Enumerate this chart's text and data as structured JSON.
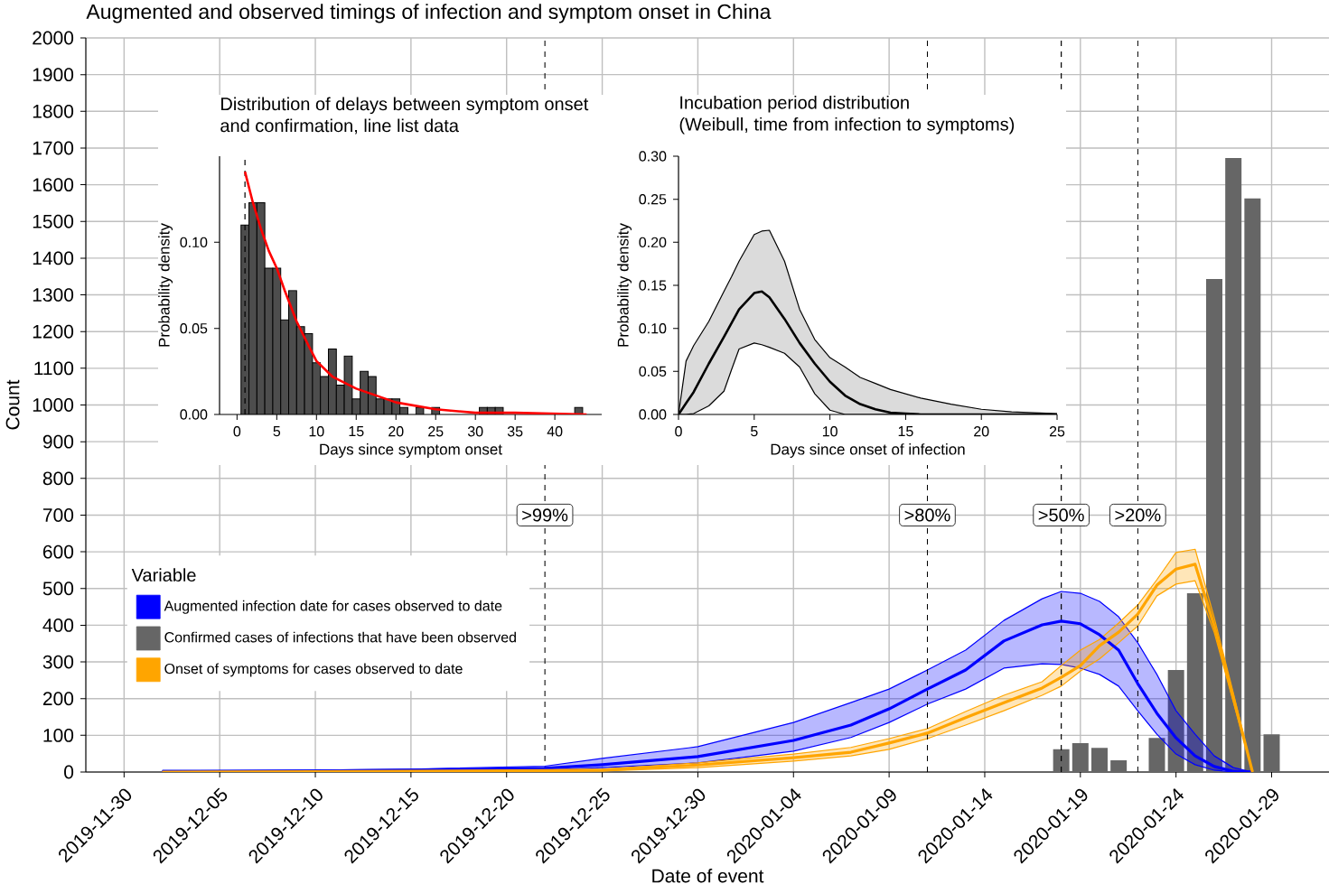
{
  "chart_data": [
    {
      "type": "bar",
      "title": "Augmented and observed timings of infection and symptom onset in China",
      "xlabel": "Date of event",
      "ylabel": "Count",
      "legend_title": "Variable",
      "legend": "bottom left",
      "grid": true,
      "xlim": [
        "2019-11-28",
        "2020-02-01"
      ],
      "ylim": [
        0,
        2000
      ],
      "xticks": [
        "2019-11-30",
        "2019-12-05",
        "2019-12-10",
        "2019-12-15",
        "2019-12-20",
        "2019-12-25",
        "2019-12-30",
        "2020-01-04",
        "2020-01-09",
        "2020-01-14",
        "2020-01-19",
        "2020-01-24",
        "2020-01-29"
      ],
      "yticks": [
        0,
        100,
        200,
        300,
        400,
        500,
        600,
        700,
        800,
        900,
        1000,
        1100,
        1200,
        1300,
        1400,
        1500,
        1600,
        1700,
        1800,
        1900,
        2000
      ],
      "ref_lines": [
        {
          "axis": "x",
          "value": "2019-12-22",
          "label": ">99%",
          "line_style": "dashed"
        },
        {
          "axis": "x",
          "value": "2020-01-11",
          "label": ">80%",
          "line_style": "dashed"
        },
        {
          "axis": "x",
          "value": "2020-01-18",
          "label": ">50%",
          "line_style": "dashed"
        },
        {
          "axis": "x",
          "value": "2020-01-22",
          "label": ">20%",
          "line_style": "dashed"
        }
      ],
      "series": [
        {
          "name": "Augmented infection date for cases observed to date",
          "type": "line",
          "color": "#0000ff",
          "x": [
            "2019-12-02",
            "2019-12-10",
            "2019-12-15",
            "2019-12-22",
            "2019-12-25",
            "2019-12-30",
            "2020-01-04",
            "2020-01-07",
            "2020-01-09",
            "2020-01-11",
            "2020-01-13",
            "2020-01-15",
            "2020-01-17",
            "2020-01-18",
            "2020-01-19",
            "2020-01-20",
            "2020-01-21",
            "2020-01-22",
            "2020-01-23",
            "2020-01-24",
            "2020-01-25",
            "2020-01-26",
            "2020-01-27",
            "2020-01-28"
          ],
          "values": [
            2,
            3,
            5,
            10,
            20,
            42,
            86,
            128,
            172,
            226,
            278,
            357,
            401,
            411,
            404,
            374,
            332,
            241,
            160,
            93,
            44,
            15,
            2,
            0
          ],
          "lower": [
            1,
            2,
            3,
            5,
            12,
            25,
            57,
            94,
            135,
            185,
            226,
            283,
            295,
            293,
            283,
            266,
            234,
            167,
            103,
            49,
            20,
            5,
            0,
            0
          ],
          "upper": [
            3,
            5,
            8,
            16,
            37,
            69,
            135,
            189,
            226,
            278,
            332,
            413,
            472,
            492,
            487,
            465,
            423,
            352,
            266,
            167,
            103,
            44,
            12,
            0
          ]
        },
        {
          "name": "Confirmed cases of infections that have been observed",
          "type": "bar",
          "color": "#666666",
          "x": [
            "2020-01-18",
            "2020-01-19",
            "2020-01-20",
            "2020-01-21",
            "2020-01-23",
            "2020-01-24",
            "2020-01-25",
            "2020-01-26",
            "2020-01-27",
            "2020-01-28",
            "2020-01-29"
          ],
          "values": [
            62,
            79,
            66,
            32,
            93,
            278,
            487,
            1343,
            1673,
            1563,
            103
          ]
        },
        {
          "name": "Onset of symptoms for cases observed to date",
          "type": "line",
          "color": "#ffa500",
          "x": [
            "2019-12-02",
            "2019-12-10",
            "2019-12-15",
            "2019-12-22",
            "2019-12-25",
            "2019-12-30",
            "2020-01-04",
            "2020-01-07",
            "2020-01-09",
            "2020-01-11",
            "2020-01-13",
            "2020-01-15",
            "2020-01-17",
            "2020-01-18",
            "2020-01-19",
            "2020-01-20",
            "2020-01-21",
            "2020-01-22",
            "2020-01-23",
            "2020-01-24",
            "2020-01-25",
            "2020-01-26",
            "2020-01-27",
            "2020-01-28"
          ],
          "values": [
            0,
            1,
            2,
            4,
            5,
            19,
            39,
            54,
            79,
            106,
            148,
            189,
            229,
            258,
            290,
            344,
            381,
            430,
            509,
            553,
            566,
            398,
            202,
            0
          ],
          "lower": [
            0,
            0,
            1,
            2,
            3,
            12,
            30,
            44,
            62,
            91,
            128,
            167,
            209,
            234,
            275,
            308,
            352,
            398,
            480,
            512,
            521,
            380,
            190,
            0
          ],
          "upper": [
            1,
            2,
            3,
            6,
            8,
            25,
            49,
            67,
            91,
            118,
            165,
            209,
            246,
            290,
            332,
            361,
            406,
            455,
            524,
            598,
            607,
            420,
            215,
            0
          ]
        }
      ]
    },
    {
      "type": "histogram",
      "title": "Distribution of delays between symptom onset",
      "subtitle": "and confirmation, line list data",
      "xlabel": "Days since symptom onset",
      "ylabel": "Probability density",
      "xlim": [
        -2.2,
        45.9
      ],
      "ylim": [
        0,
        0.15
      ],
      "xticks": [
        0,
        5,
        10,
        15,
        20,
        25,
        30,
        35,
        40
      ],
      "yticks": [
        {
          "value": 0,
          "label": "0.00"
        },
        {
          "value": 0.05,
          "label": "0.05"
        },
        {
          "value": 0.1,
          "label": "0.10"
        }
      ],
      "ref_lines": [
        {
          "axis": "x",
          "value": 1,
          "line_style": "dashed"
        }
      ],
      "series": [
        {
          "type": "histogram",
          "color": "#4d4d4d",
          "bins": [
            0.5,
            1.5,
            2.5,
            3.5,
            4.5,
            5.5,
            6.5,
            7.5,
            8.5,
            9.5,
            10.5,
            11.5,
            12.5,
            13.5,
            14.5,
            15.5,
            16.5,
            17.5,
            18.5,
            19.5,
            20.5,
            21.5,
            22.5,
            23.5,
            24.5,
            25.5,
            26.5,
            27.5,
            28.5,
            29.5,
            30.5,
            31.5,
            32.5,
            33.5,
            34.5,
            35.5,
            36.5,
            37.5,
            38.5,
            39.5,
            40.5,
            41.5,
            42.5,
            43.5
          ],
          "values": [
            0.11,
            0.123,
            0.123,
            0.085,
            0.085,
            0.055,
            0.072,
            0.051,
            0.047,
            0.03,
            0.022,
            0.038,
            0.017,
            0.034,
            0.009,
            0.025,
            0.022,
            0.009,
            0.009,
            0.009,
            0.004,
            0,
            0.004,
            0,
            0.004,
            0,
            0,
            0,
            0,
            0,
            0.004,
            0.004,
            0.004,
            0,
            0,
            0,
            0,
            0,
            0,
            0,
            0,
            0,
            0.004
          ]
        },
        {
          "type": "line",
          "color": "#ff0000",
          "x": [
            1,
            2,
            3,
            4,
            5,
            6,
            7.5,
            9,
            10,
            12,
            15,
            20,
            25,
            30,
            35,
            44
          ],
          "values": [
            0.141,
            0.123,
            0.108,
            0.095,
            0.085,
            0.072,
            0.054,
            0.04,
            0.031,
            0.022,
            0.015,
            0.007,
            0.003,
            0.001,
            0.001,
            0
          ]
        }
      ]
    },
    {
      "type": "line",
      "title": "Incubation period distribution",
      "subtitle": "(Weibull, time from infection to symptoms)",
      "xlabel": "Days since onset of infection",
      "ylabel": "Probability density",
      "xlim": [
        0,
        25
      ],
      "ylim": [
        0,
        0.3
      ],
      "xticks": [
        0,
        5,
        10,
        15,
        20,
        25
      ],
      "yticks": [
        {
          "value": 0,
          "label": "0.00"
        },
        {
          "value": 0.05,
          "label": "0.05"
        },
        {
          "value": 0.1,
          "label": "0.10"
        },
        {
          "value": 0.15,
          "label": "0.15"
        },
        {
          "value": 0.2,
          "label": "0.20"
        },
        {
          "value": 0.25,
          "label": "0.25"
        },
        {
          "value": 0.3,
          "label": "0.30"
        }
      ],
      "x": [
        0,
        0.5,
        1,
        2,
        3,
        3.5,
        4,
        5,
        5.5,
        6,
        7,
        8,
        9,
        10,
        11,
        12,
        13,
        14,
        15,
        16,
        18,
        20,
        22,
        25
      ],
      "series": [
        {
          "color": "#000000",
          "values": [
            0,
            0.013,
            0.026,
            0.059,
            0.09,
            0.106,
            0.122,
            0.141,
            0.143,
            0.136,
            0.111,
            0.083,
            0.059,
            0.038,
            0.022,
            0.012,
            0.006,
            0.002,
            0.001,
            0,
            0,
            0,
            0,
            0
          ],
          "lower": [
            0,
            0,
            0.001,
            0.01,
            0.027,
            0.052,
            0.076,
            0.083,
            0.081,
            0.078,
            0.071,
            0.055,
            0.024,
            0.005,
            0,
            0,
            0,
            0,
            0,
            0,
            0,
            0,
            0,
            0
          ],
          "upper": [
            0,
            0.062,
            0.08,
            0.108,
            0.143,
            0.16,
            0.178,
            0.209,
            0.213,
            0.214,
            0.178,
            0.122,
            0.087,
            0.066,
            0.055,
            0.043,
            0.036,
            0.029,
            0.024,
            0.019,
            0.012,
            0.006,
            0.003,
            0.001
          ]
        }
      ]
    }
  ]
}
